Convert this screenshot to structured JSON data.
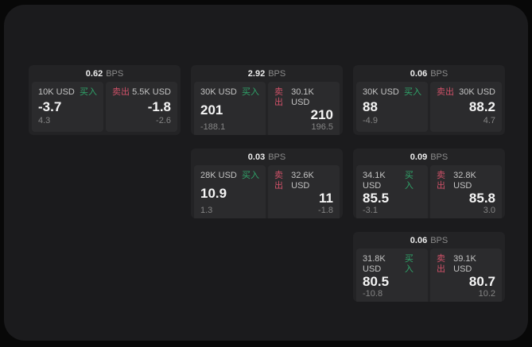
{
  "labels": {
    "bps_unit": "BPS",
    "buy": "买入",
    "sell": "卖出"
  },
  "colors": {
    "buy_green": "#2fa56a",
    "sell_red": "#cf5168",
    "page_bg": "#080808",
    "panel_bg": "#1b1b1d",
    "card_bg": "#232325",
    "tile_bg": "#2b2b2d"
  },
  "cards": [
    {
      "bps": "0.62",
      "buy": {
        "size": "10K USD",
        "price": "-3.7",
        "delta": "4.3"
      },
      "sell": {
        "size": "5.5K USD",
        "price": "-1.8",
        "delta": "-2.6"
      }
    },
    {
      "bps": "2.92",
      "buy": {
        "size": "30K USD",
        "price": "201",
        "delta": "-188.1"
      },
      "sell": {
        "size": "30.1K USD",
        "price": "210",
        "delta": "196.5"
      }
    },
    {
      "bps": "0.06",
      "buy": {
        "size": "30K USD",
        "price": "88",
        "delta": "-4.9"
      },
      "sell": {
        "size": "30K USD",
        "price": "88.2",
        "delta": "4.7"
      }
    },
    {
      "bps": "0.03",
      "buy": {
        "size": "28K USD",
        "price": "10.9",
        "delta": "1.3"
      },
      "sell": {
        "size": "32.6K USD",
        "price": "11",
        "delta": "-1.8"
      }
    },
    {
      "bps": "0.09",
      "buy": {
        "size": "34.1K USD",
        "price": "85.5",
        "delta": "-3.1"
      },
      "sell": {
        "size": "32.8K USD",
        "price": "85.8",
        "delta": "3.0"
      }
    },
    {
      "bps": "0.06",
      "buy": {
        "size": "31.8K USD",
        "price": "80.5",
        "delta": "-10.8"
      },
      "sell": {
        "size": "39.1K USD",
        "price": "80.7",
        "delta": "10.2"
      }
    }
  ]
}
